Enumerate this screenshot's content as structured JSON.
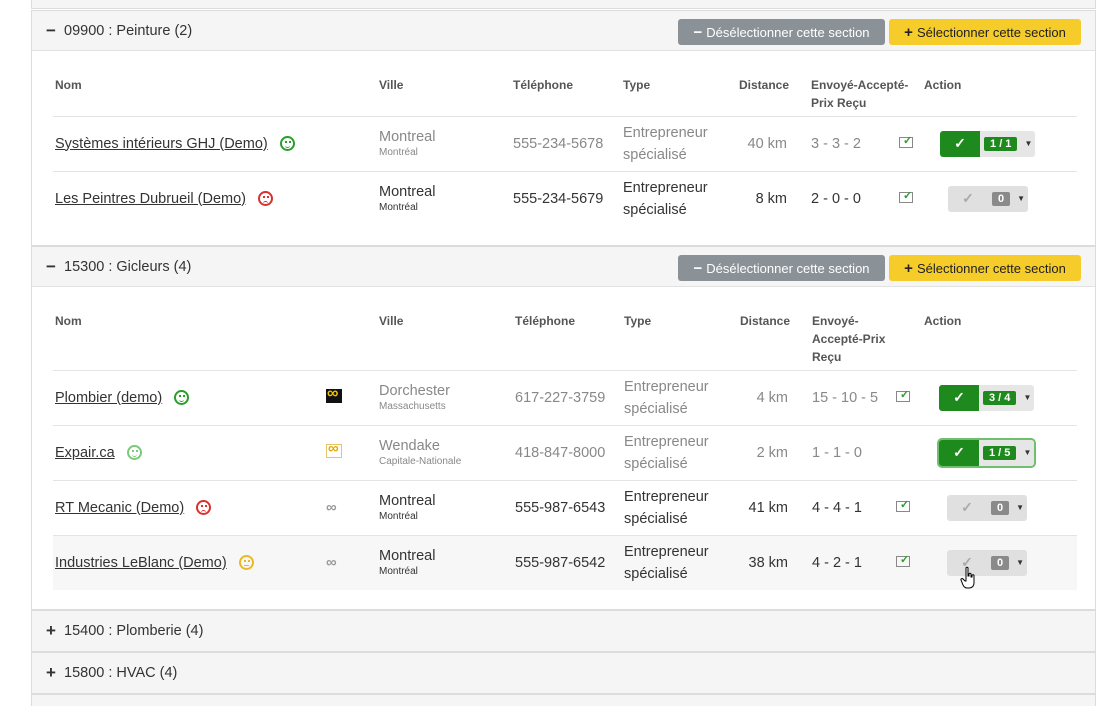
{
  "sections": [
    {
      "title": "09900 : Peinture (2)",
      "expanded": true,
      "deselect_label": "Désélectionner cette section",
      "select_label": "Sélectionner cette section",
      "headers": {
        "nom": "Nom",
        "ville": "Ville",
        "telephone": "Téléphone",
        "type": "Type",
        "distance": "Distance",
        "envoye": "Envoyé-Accepté-Prix Reçu",
        "action": "Action"
      },
      "rows": [
        {
          "name": "Systèmes intérieurs GHJ (Demo)",
          "mood": "happy",
          "city": "Montreal",
          "region": "Montréal",
          "phone": "555-234-5678",
          "type_line1": "Entrepreneur",
          "type_line2": "spécialisé",
          "distance": "40 km",
          "counts": "3 - 3 - 2",
          "action": "on",
          "badge": "1 / 1",
          "muted": true
        },
        {
          "name": "Les Peintres Dubrueil (Demo)",
          "mood": "sad",
          "city": "Montreal",
          "region": "Montréal",
          "phone": "555-234-5679",
          "type_line1": "Entrepreneur",
          "type_line2": "spécialisé",
          "distance": "8 km",
          "counts": "2 - 0 - 0",
          "action": "off",
          "badge": "0",
          "muted": false
        }
      ]
    },
    {
      "title": "15300 : Gicleurs (4)",
      "expanded": true,
      "deselect_label": "Désélectionner cette section",
      "select_label": "Sélectionner cette section",
      "headers": {
        "nom": "Nom",
        "ville": "Ville",
        "telephone": "Téléphone",
        "type": "Type",
        "distance": "Distance",
        "envoye_1": "Envoyé-",
        "envoye_2": "Accepté-Prix",
        "envoye_3": "Reçu",
        "action": "Action"
      },
      "rows": [
        {
          "name": "Plombier (demo)",
          "mood": "happy",
          "logo": "dark",
          "city": "Dorchester",
          "region": "Massachusetts",
          "phone": "617-227-3759",
          "type_line1": "Entrepreneur",
          "type_line2": "spécialisé",
          "distance": "4 km",
          "counts": "15 - 10 - 5",
          "action": "on",
          "badge": "3 / 4",
          "muted": true
        },
        {
          "name": "Expair.ca",
          "mood": "happy-light",
          "logo": "light",
          "city": "Wendake",
          "region": "Capitale-Nationale",
          "phone": "418-847-8000",
          "type_line1": "Entrepreneur",
          "type_line2": "spécialisé",
          "distance": "2 km",
          "counts": "1 - 1 - 0",
          "action": "on-focus",
          "badge": "1 / 5",
          "muted": true
        },
        {
          "name": "RT Mecanic (Demo)",
          "mood": "sad",
          "logo": "gray",
          "city": "Montreal",
          "region": "Montréal",
          "phone": "555-987-6543",
          "type_line1": "Entrepreneur",
          "type_line2": "spécialisé",
          "distance": "41 km",
          "counts": "4 - 4 - 1",
          "action": "off",
          "badge": "0",
          "muted": false
        },
        {
          "name": "Industries LeBlanc (Demo)",
          "mood": "neutral",
          "logo": "gray",
          "city": "Montreal",
          "region": "Montréal",
          "phone": "555-987-6542",
          "type_line1": "Entrepreneur",
          "type_line2": "spécialisé",
          "distance": "38 km",
          "counts": "4 - 2 - 1",
          "action": "off",
          "badge": "0",
          "muted": false
        }
      ]
    },
    {
      "title": "15400 : Plomberie (4)",
      "expanded": false
    },
    {
      "title": "15800 : HVAC (4)",
      "expanded": false
    }
  ],
  "icons": {
    "collapse": "minus-icon",
    "expand": "plus-icon",
    "check": "check-icon",
    "caret": "caret-down-icon",
    "mail": "mail-check-icon"
  },
  "colors": {
    "success": "#1e8a1e",
    "warning": "#f5cc2a",
    "secondary": "#8a9197"
  }
}
